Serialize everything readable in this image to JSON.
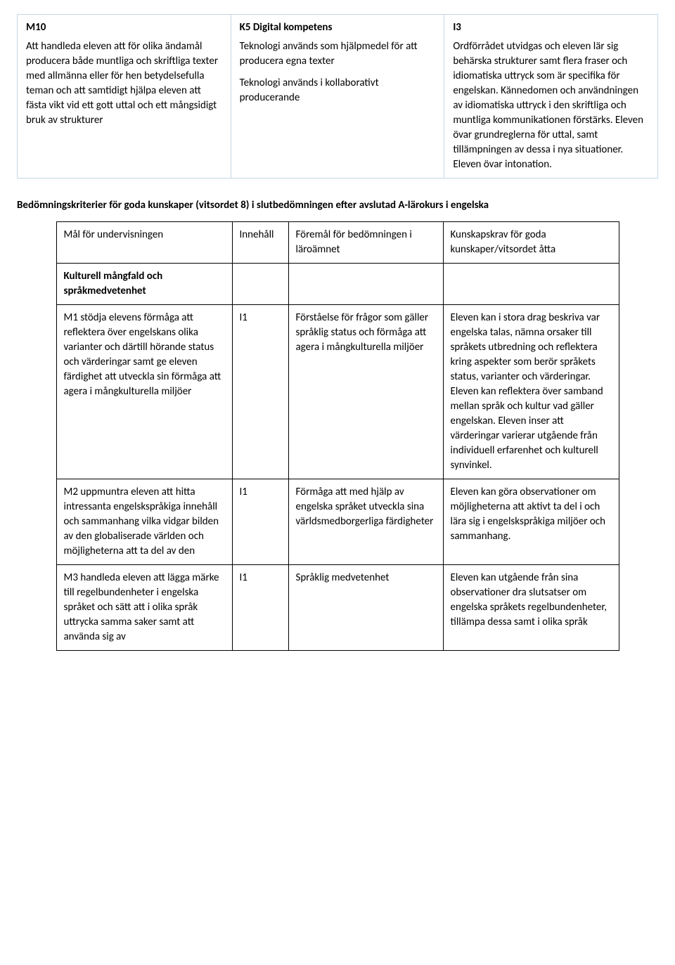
{
  "topTable": {
    "col1": {
      "heading": "M10",
      "body": "Att handleda eleven att för olika ändamål producera både muntliga och skriftliga texter med allmänna eller för hen betydelsefulla teman och att samtidigt hjälpa eleven att fästa vikt vid ett gott uttal och ett mångsidigt bruk av strukturer"
    },
    "col2": {
      "heading": "K5 Digital kompetens",
      "p1": "Teknologi används som hjälpmedel för att producera egna texter",
      "p2": "Teknologi används i kollaborativt producerande"
    },
    "col3": {
      "heading": "I3",
      "body": "Ordförrådet utvidgas och eleven lär sig behärska strukturer samt flera fraser och idiomatiska uttryck som är specifika för engelskan. Kännedomen och användningen av idiomatiska uttryck i den skriftliga och muntliga kommunikationen förstärks. Eleven övar grundreglerna för uttal, samt tillämpningen av dessa i nya situationer. Eleven övar intonation."
    }
  },
  "sectionTitle": "Bedömningskriterier för goda kunskaper (vitsordet 8) i slutbedömningen efter avslutad A-lärokurs i engelska",
  "criteriaTable": {
    "headerRow": {
      "c1": "Mål för undervisningen",
      "c2": "Innehåll",
      "c3": "Föremål för bedömningen i läroämnet",
      "c4": "Kunskapskrav för goda kunskaper/vitsordet åtta"
    },
    "sectionRow": {
      "c1": "Kulturell mångfald och språkmedvetenhet"
    },
    "rows": [
      {
        "c1": "M1 stödja elevens förmåga att reflektera över engelskans olika varianter och därtill hörande status och värderingar samt ge eleven färdighet att utveckla sin förmåga att agera i mångkulturella miljöer",
        "c2": "I1",
        "c3": "Förståelse för frågor som gäller språklig status och förmåga att agera i mångkulturella miljöer",
        "c4": "Eleven kan i stora drag beskriva var engelska talas, nämna orsaker till språkets utbredning och reflektera kring aspekter som berör språkets status, varianter och värderingar. Eleven kan reflektera över samband mellan språk och kultur vad gäller engelskan. Eleven inser att värderingar varierar utgående från individuell erfarenhet och kulturell synvinkel."
      },
      {
        "c1": "M2 uppmuntra eleven att hitta intressanta engelskspråkiga innehåll och sammanhang vilka vidgar bilden av den globaliserade världen och möjligheterna att ta del av den",
        "c2": "I1",
        "c3": "Förmåga att med hjälp av engelska språket utveckla sina världsmedborgerliga färdigheter",
        "c4": "Eleven kan göra observationer om möjligheterna att aktivt ta del i och lära sig i engelskspråkiga miljöer och sammanhang."
      },
      {
        "c1": "M3 handleda eleven att lägga märke till regelbundenheter i engelska språket och sätt att i olika språk uttrycka samma saker samt att använda sig av",
        "c2": "I1",
        "c3": "Språklig medvetenhet",
        "c4": "Eleven kan utgående från sina observationer dra slutsatser om engelska språkets regelbundenheter, tillämpa dessa samt i olika språk"
      }
    ]
  }
}
